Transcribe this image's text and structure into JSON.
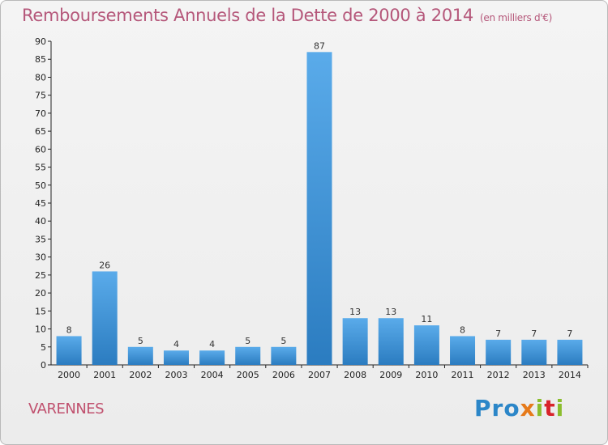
{
  "chart_data": {
    "type": "bar",
    "title": "Remboursements Annuels de la Dette de 2000 à 2014",
    "unit_label": "(en milliers d'€)",
    "categories": [
      "2000",
      "2001",
      "2002",
      "2003",
      "2004",
      "2005",
      "2006",
      "2007",
      "2008",
      "2009",
      "2010",
      "2011",
      "2012",
      "2013",
      "2014"
    ],
    "values": [
      8,
      26,
      5,
      4,
      4,
      5,
      5,
      87,
      13,
      13,
      11,
      8,
      7,
      7,
      7
    ],
    "ylim": [
      0,
      90
    ],
    "yticks": [
      0,
      5,
      10,
      15,
      20,
      25,
      30,
      35,
      40,
      45,
      50,
      55,
      60,
      65,
      70,
      75,
      80,
      85,
      90
    ],
    "grid": false,
    "data_labels": true,
    "bar_color": "#3a93d8",
    "bar_color_dark": "#2b7cc0"
  },
  "footer": {
    "place": "VARENNES",
    "logo": {
      "part1": "Pro",
      "part2": "x",
      "part3": "i",
      "part4": "t",
      "part5": "i"
    }
  },
  "colors": {
    "title": "#b5577a",
    "place": "#c0506e",
    "axis": "#222222"
  }
}
